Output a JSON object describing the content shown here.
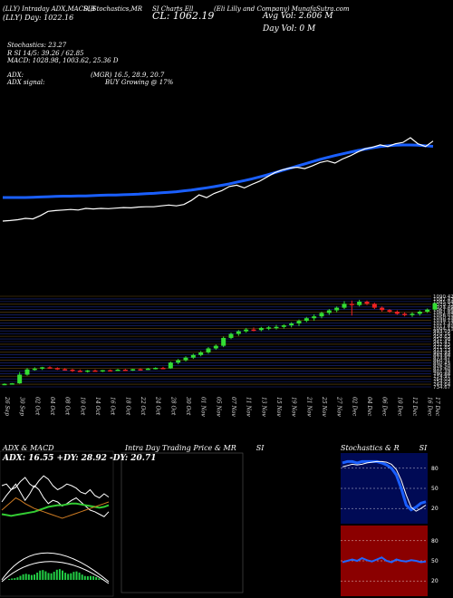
{
  "header": {
    "ticker": "(LLY) Intraday ADX,MACD,B",
    "day": "(LLY) Day: 1022.16",
    "ind2": "SI,Stochastics,MR",
    "ind3": "SI Charts Ell",
    "close": "CL: 1062.19",
    "company": "(Eli Lilly and C",
    "company_suffix": "ompany) MunafaSutra.com",
    "avg_vol": "Avg Vol: 2.606  M",
    "day_vol": "Day Vol: 0  M"
  },
  "indicators": {
    "stoch_label": "Stochastics: 23.27",
    "rsi_line": "R         SI 14/5: 39.26  /  62.85",
    "macd_line": "MACD: 1028.98, 1003.62, 25.36  D",
    "adx_label": "ADX:",
    "mgr_line": "(MGR) 16.5, 28.9, 20.7",
    "adx_signal_label": "ADX  signal:",
    "adx_signal": "BUY Growing @ 17%"
  },
  "colors": {
    "background": "#000000",
    "price_line": "#ffffff",
    "ma_line": "#1a5fff",
    "up_candle": "#33dd33",
    "down_candle": "#ee2222",
    "stoch_panel_bg": "#000a55",
    "rsi_panel_bg": "#8b0000"
  },
  "price_axis_labels": [
    "1090.42",
    "1087.47",
    "1085.84",
    "1079.32",
    "1073.49",
    "1067.66",
    "1061.84",
    "1056.01",
    "1050.23",
    "1039.73",
    "1027.37",
    "1017.81",
    "1004.11",
    "993.03",
    "970.16",
    "958.63",
    "951.98",
    "941.47",
    "932.83",
    "921.85",
    "913.13",
    "902.93",
    "883.68",
    "873.87",
    "860.91",
    "850.45",
    "826.50",
    "815.60",
    "801.39",
    "790.88",
    "774.97",
    "764.03",
    "754.03",
    "744.64",
    "734.67"
  ],
  "chart_data": [
    {
      "type": "line",
      "title": "",
      "x": [
        "26 Sep",
        "27 Sep",
        "30 Sep",
        "01 Oct",
        "02 Oct",
        "03 Oct",
        "04 Oct",
        "07 Oct",
        "08 Oct",
        "09 Oct",
        "10 Oct",
        "11 Oct",
        "14 Oct",
        "15 Oct",
        "16 Oct",
        "17 Oct",
        "18 Oct",
        "21 Oct",
        "22 Oct",
        "23 Oct",
        "24 Oct",
        "25 Oct",
        "28 Oct",
        "29 Oct",
        "30 Oct",
        "31 Oct",
        "01 Nov",
        "04 Nov",
        "05 Nov",
        "06 Nov",
        "07 Nov",
        "08 Nov",
        "11 Nov",
        "12 Nov",
        "13 Nov",
        "14 Nov",
        "15 Nov",
        "18 Nov",
        "19 Nov",
        "20 Nov",
        "21 Nov",
        "22 Nov",
        "25 Nov",
        "26 Nov",
        "27 Nov",
        "29 Nov",
        "02 Dec",
        "03 Dec",
        "04 Dec",
        "05 Dec",
        "06 Dec",
        "09 Dec",
        "10 Dec",
        "11 Dec",
        "12 Dec",
        "13 Dec",
        "16 Dec",
        "17 Dec"
      ],
      "series": [
        {
          "values": [
            760,
            762,
            765,
            770,
            768,
            780,
            795,
            798,
            800,
            802,
            800,
            806,
            804,
            806,
            805,
            807,
            809,
            808,
            811,
            812,
            812,
            815,
            818,
            815,
            820,
            835,
            855,
            845,
            860,
            870,
            885,
            890,
            880,
            893,
            904,
            920,
            935,
            945,
            952,
            955,
            950,
            960,
            972,
            978,
            970,
            985,
            996,
            1010,
            1022,
            1028,
            1036,
            1030,
            1040,
            1045,
            1062,
            1040,
            1030,
            1050
          ]
        },
        {
          "values": [
            801,
            801,
            801,
            801,
            802,
            803,
            804,
            805,
            806,
            806,
            807,
            807,
            808,
            809,
            810,
            810,
            811,
            812,
            813,
            815,
            816,
            818,
            820,
            822,
            825,
            828,
            832,
            836,
            840,
            845,
            850,
            856,
            862,
            868,
            875,
            882,
            890,
            898,
            906,
            914,
            922,
            930,
            938,
            945,
            952,
            958,
            964,
            970,
            975,
            980,
            984,
            987,
            989,
            990,
            990,
            989,
            987,
            985
          ]
        }
      ],
      "ylim": [
        720,
        1110
      ]
    },
    {
      "type": "bar",
      "title": "",
      "categories": [
        "26 Sep",
        "27 Sep",
        "30 Sep",
        "01 Oct",
        "02 Oct",
        "03 Oct",
        "04 Oct",
        "07 Oct",
        "08 Oct",
        "09 Oct",
        "10 Oct",
        "11 Oct",
        "14 Oct",
        "15 Oct",
        "16 Oct",
        "17 Oct",
        "18 Oct",
        "21 Oct",
        "22 Oct",
        "23 Oct",
        "24 Oct",
        "25 Oct",
        "28 Oct",
        "29 Oct",
        "30 Oct",
        "31 Oct",
        "01 Nov",
        "04 Nov",
        "05 Nov",
        "06 Nov",
        "07 Nov",
        "08 Nov",
        "11 Nov",
        "12 Nov",
        "13 Nov",
        "14 Nov",
        "15 Nov",
        "18 Nov",
        "19 Nov",
        "20 Nov",
        "21 Nov",
        "22 Nov",
        "25 Nov",
        "26 Nov",
        "27 Nov",
        "29 Nov",
        "02 Dec",
        "03 Dec",
        "04 Dec",
        "05 Dec",
        "06 Dec",
        "09 Dec",
        "10 Dec",
        "11 Dec",
        "12 Dec",
        "13 Dec",
        "16 Dec",
        "17 Dec"
      ],
      "ylim": [
        720,
        1110
      ],
      "ohlc": [
        [
          753,
          757,
          750,
          755
        ],
        [
          755,
          758,
          752,
          757
        ],
        [
          757,
          800,
          755,
          790
        ],
        [
          790,
          815,
          786,
          810
        ],
        [
          810,
          818,
          805,
          813
        ],
        [
          813,
          820,
          808,
          818
        ],
        [
          818,
          822,
          812,
          815
        ],
        [
          815,
          818,
          808,
          811
        ],
        [
          811,
          815,
          806,
          809
        ],
        [
          809,
          812,
          800,
          805
        ],
        [
          805,
          810,
          800,
          803
        ],
        [
          803,
          808,
          798,
          806
        ],
        [
          806,
          810,
          802,
          804
        ],
        [
          804,
          808,
          800,
          807
        ],
        [
          807,
          810,
          803,
          806
        ],
        [
          806,
          812,
          804,
          809
        ],
        [
          809,
          812,
          805,
          808
        ],
        [
          808,
          812,
          804,
          811
        ],
        [
          811,
          814,
          806,
          810
        ],
        [
          810,
          816,
          808,
          813
        ],
        [
          813,
          818,
          810,
          816
        ],
        [
          816,
          820,
          812,
          814
        ],
        [
          814,
          840,
          812,
          836
        ],
        [
          836,
          850,
          830,
          845
        ],
        [
          845,
          860,
          840,
          855
        ],
        [
          855,
          870,
          850,
          865
        ],
        [
          865,
          880,
          860,
          875
        ],
        [
          875,
          895,
          870,
          890
        ],
        [
          890,
          905,
          885,
          900
        ],
        [
          900,
          935,
          895,
          930
        ],
        [
          930,
          950,
          925,
          945
        ],
        [
          945,
          960,
          938,
          955
        ],
        [
          955,
          968,
          950,
          962
        ],
        [
          962,
          970,
          955,
          960
        ],
        [
          960,
          972,
          955,
          968
        ],
        [
          968,
          975,
          960,
          970
        ],
        [
          970,
          980,
          962,
          972
        ],
        [
          972,
          982,
          965,
          978
        ],
        [
          978,
          990,
          970,
          985
        ],
        [
          985,
          1000,
          975,
          995
        ],
        [
          995,
          1010,
          990,
          1005
        ],
        [
          1005,
          1020,
          995,
          1012
        ],
        [
          1012,
          1030,
          1005,
          1025
        ],
        [
          1025,
          1040,
          1018,
          1035
        ],
        [
          1035,
          1050,
          1028,
          1045
        ],
        [
          1045,
          1070,
          1040,
          1060
        ],
        [
          1060,
          1072,
          1015,
          1055
        ],
        [
          1055,
          1075,
          1050,
          1068
        ],
        [
          1068,
          1072,
          1055,
          1060
        ],
        [
          1060,
          1064,
          1040,
          1045
        ],
        [
          1045,
          1050,
          1030,
          1036
        ],
        [
          1036,
          1040,
          1025,
          1030
        ],
        [
          1030,
          1035,
          1018,
          1022
        ],
        [
          1022,
          1028,
          1012,
          1018
        ],
        [
          1018,
          1028,
          1010,
          1022
        ],
        [
          1022,
          1035,
          1015,
          1030
        ],
        [
          1030,
          1042,
          1025,
          1038
        ],
        [
          1038,
          1064,
          1035,
          1062
        ]
      ]
    },
    {
      "type": "line",
      "title": "ADX  & MACD",
      "subtitle": "ADX: 16.55  +DY: 28.92  -DY: 20.71",
      "series": [
        {
          "values": [
            60,
            62,
            55,
            58,
            65,
            70,
            62,
            58,
            66,
            72,
            68,
            60,
            55,
            58,
            62,
            60,
            57,
            52,
            50,
            55,
            48,
            45,
            50,
            46
          ]
        },
        {
          "values": [
            40,
            48,
            55,
            62,
            52,
            42,
            50,
            60,
            55,
            45,
            38,
            42,
            40,
            35,
            38,
            42,
            45,
            40,
            35,
            30,
            28,
            25,
            22,
            28
          ]
        },
        {
          "values": [
            25,
            24,
            23,
            24,
            25,
            26,
            27,
            28,
            30,
            32,
            34,
            35,
            36,
            36,
            37,
            38,
            38,
            37,
            36,
            35,
            34,
            33,
            34,
            36
          ]
        },
        {
          "values": [
            30,
            35,
            40,
            45,
            42,
            38,
            35,
            32,
            30,
            28,
            26,
            24,
            22,
            20,
            22,
            24,
            26,
            28,
            30,
            32,
            34,
            36,
            38,
            40
          ]
        }
      ]
    },
    {
      "type": "line",
      "title": "Intra Day Trading Price  & MR",
      "title_suffix": "SI",
      "series": []
    },
    {
      "type": "line",
      "title": "Stochastics & R",
      "title_suffix": "SI",
      "yticks": [
        "80",
        "50",
        "20"
      ],
      "series": [
        {
          "values": [
            88,
            90,
            90,
            88,
            90,
            90,
            90,
            90,
            88,
            85,
            80,
            70,
            50,
            25,
            18,
            22,
            28,
            30
          ]
        },
        {
          "values": [
            82,
            84,
            86,
            85,
            86,
            88,
            89,
            90,
            90,
            89,
            86,
            78,
            62,
            40,
            22,
            16,
            20,
            25
          ]
        }
      ]
    },
    {
      "type": "line",
      "title": "",
      "yticks": [
        "80",
        "50",
        "20"
      ],
      "series": [
        {
          "values": [
            48,
            50,
            52,
            50,
            54,
            51,
            49,
            52,
            55,
            50,
            48,
            52,
            50,
            49,
            51,
            50,
            48,
            49
          ]
        }
      ]
    }
  ]
}
